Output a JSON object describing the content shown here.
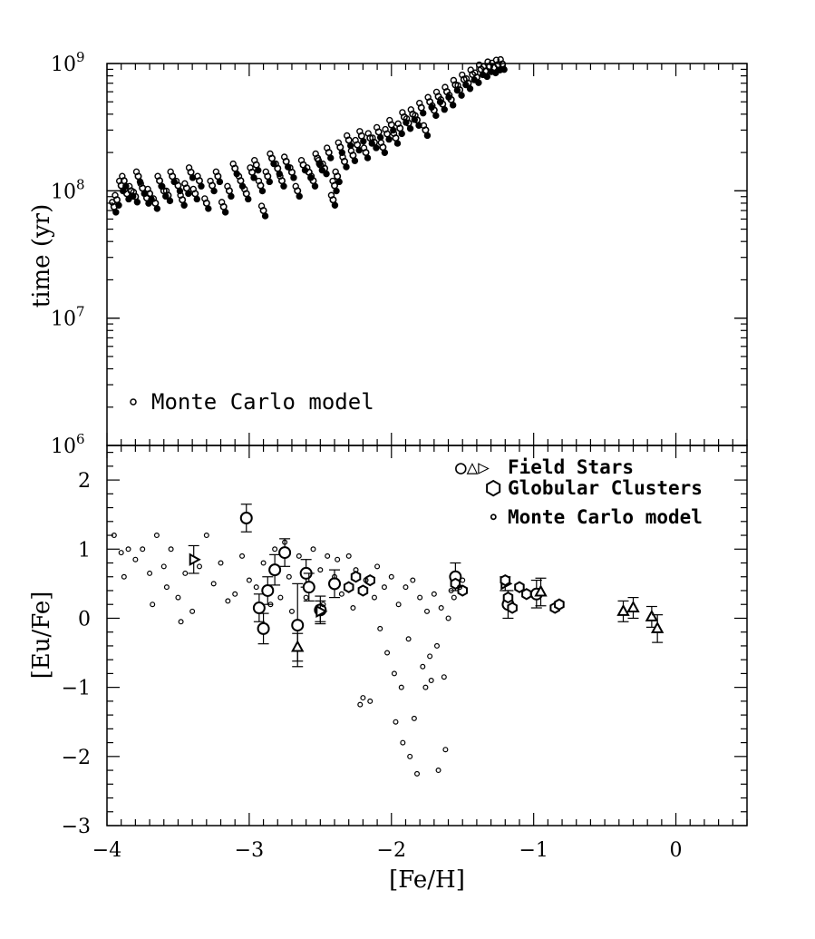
{
  "chart_data": [
    {
      "panel": "top",
      "type": "scatter",
      "xlabel": "",
      "ylabel": "time (yr)",
      "xlim": [
        -4,
        0.5
      ],
      "ylim": [
        1000000,
        1000000000
      ],
      "yscale": "log",
      "yticks": [
        {
          "value": 1000000,
          "base": "10",
          "exp": "6"
        },
        {
          "value": 10000000,
          "base": "10",
          "exp": "7"
        },
        {
          "value": 100000000,
          "base": "10",
          "exp": "8"
        },
        {
          "value": 1000000000,
          "base": "10",
          "exp": "9"
        }
      ],
      "legend": [
        {
          "marker": "circle-small",
          "label": "Monte Carlo model"
        }
      ],
      "legend_position": "bottom-left",
      "series": [
        {
          "name": "Monte Carlo model",
          "marker": "circle-small",
          "points": [
            [
              -3.95,
              75000000
            ],
            [
              -3.93,
              85000000
            ],
            [
              -3.9,
              110000000
            ],
            [
              -3.88,
              120000000
            ],
            [
              -3.86,
              95000000
            ],
            [
              -3.83,
              100000000
            ],
            [
              -3.8,
              90000000
            ],
            [
              -3.78,
              130000000
            ],
            [
              -3.75,
              105000000
            ],
            [
              -3.72,
              88000000
            ],
            [
              -3.7,
              95000000
            ],
            [
              -3.66,
              80000000
            ],
            [
              -3.63,
              120000000
            ],
            [
              -3.6,
              100000000
            ],
            [
              -3.57,
              92000000
            ],
            [
              -3.54,
              130000000
            ],
            [
              -3.5,
              110000000
            ],
            [
              -3.47,
              85000000
            ],
            [
              -3.44,
              105000000
            ],
            [
              -3.41,
              140000000
            ],
            [
              -3.38,
              95000000
            ],
            [
              -3.35,
              120000000
            ],
            [
              -3.3,
              80000000
            ],
            [
              -3.26,
              110000000
            ],
            [
              -3.22,
              130000000
            ],
            [
              -3.18,
              75000000
            ],
            [
              -3.14,
              100000000
            ],
            [
              -3.1,
              150000000
            ],
            [
              -3.06,
              120000000
            ],
            [
              -3.02,
              95000000
            ],
            [
              -2.98,
              140000000
            ],
            [
              -2.95,
              160000000
            ],
            [
              -2.92,
              110000000
            ],
            [
              -2.9,
              70000000
            ],
            [
              -2.87,
              130000000
            ],
            [
              -2.84,
              180000000
            ],
            [
              -2.8,
              150000000
            ],
            [
              -2.77,
              120000000
            ],
            [
              -2.74,
              170000000
            ],
            [
              -2.7,
              140000000
            ],
            [
              -2.66,
              100000000
            ],
            [
              -2.62,
              160000000
            ],
            [
              -2.58,
              140000000
            ],
            [
              -2.55,
              120000000
            ],
            [
              -2.52,
              180000000
            ],
            [
              -2.5,
              160000000
            ],
            [
              -2.47,
              150000000
            ],
            [
              -2.44,
              200000000
            ],
            [
              -2.41,
              85000000
            ],
            [
              -2.4,
              110000000
            ],
            [
              -2.38,
              130000000
            ],
            [
              -2.36,
              220000000
            ],
            [
              -2.33,
              170000000
            ],
            [
              -2.3,
              250000000
            ],
            [
              -2.27,
              190000000
            ],
            [
              -2.24,
              230000000
            ],
            [
              -2.21,
              270000000
            ],
            [
              -2.18,
              200000000
            ],
            [
              -2.15,
              260000000
            ],
            [
              -2.12,
              240000000
            ],
            [
              -2.09,
              290000000
            ],
            [
              -2.06,
              220000000
            ],
            [
              -2.03,
              280000000
            ],
            [
              -2.0,
              330000000
            ],
            [
              -1.97,
              260000000
            ],
            [
              -1.94,
              310000000
            ],
            [
              -1.91,
              380000000
            ],
            [
              -1.88,
              340000000
            ],
            [
              -1.85,
              400000000
            ],
            [
              -1.82,
              360000000
            ],
            [
              -1.79,
              450000000
            ],
            [
              -1.76,
              300000000
            ],
            [
              -1.73,
              500000000
            ],
            [
              -1.7,
              430000000
            ],
            [
              -1.67,
              550000000
            ],
            [
              -1.64,
              480000000
            ],
            [
              -1.61,
              600000000
            ],
            [
              -1.58,
              520000000
            ],
            [
              -1.55,
              680000000
            ],
            [
              -1.52,
              620000000
            ],
            [
              -1.49,
              750000000
            ],
            [
              -1.46,
              700000000
            ],
            [
              -1.43,
              820000000
            ],
            [
              -1.4,
              780000000
            ],
            [
              -1.37,
              900000000
            ],
            [
              -1.34,
              870000000
            ],
            [
              -1.31,
              950000000
            ],
            [
              -1.28,
              930000000
            ],
            [
              -1.25,
              980000000
            ],
            [
              -1.22,
              990000000
            ]
          ]
        }
      ]
    },
    {
      "panel": "bottom",
      "type": "scatter",
      "xlabel": "[Fe/H]",
      "ylabel": "[Eu/Fe]",
      "xlim": [
        -4,
        0.5
      ],
      "ylim": [
        -3,
        2.5
      ],
      "xticks": [
        "−4",
        "−3",
        "−2",
        "−1",
        "0"
      ],
      "xtick_values": [
        -4,
        -3,
        -2,
        -1,
        0
      ],
      "yticks": [
        "−3",
        "−2",
        "−1",
        "0",
        "1",
        "2"
      ],
      "ytick_values": [
        -3,
        -2,
        -1,
        0,
        1,
        2
      ],
      "legend": [
        {
          "markers": "○△▷",
          "label": "Field Stars"
        },
        {
          "markers": "⬡",
          "label": "Globular Clusters"
        },
        {
          "markers": "∘",
          "label": "Monte Carlo model"
        }
      ],
      "legend_position": "top-right",
      "series": [
        {
          "name": "Field Stars",
          "marker": "circle-large",
          "points": [
            [
              -3.02,
              1.45,
              0.2
            ],
            [
              -2.93,
              0.15,
              0.2
            ],
            [
              -2.9,
              -0.15,
              0.22
            ],
            [
              -2.87,
              0.4,
              0.2
            ],
            [
              -2.82,
              0.7,
              0.22
            ],
            [
              -2.75,
              0.95,
              0.2
            ],
            [
              -2.66,
              -0.1,
              0.6
            ],
            [
              -2.6,
              0.65,
              0.2
            ],
            [
              -2.58,
              0.45,
              0.2
            ],
            [
              -2.5,
              0.12,
              0.2
            ],
            [
              -2.4,
              0.5,
              0.2
            ],
            [
              -1.55,
              0.6,
              0.2
            ],
            [
              -1.18,
              0.2,
              0.2
            ],
            [
              -0.98,
              0.35,
              0.2
            ]
          ]
        },
        {
          "name": "Field Stars",
          "marker": "triangle-up",
          "points": [
            [
              -2.66,
              -0.42,
              0.2
            ],
            [
              -0.95,
              0.38,
              0.2
            ],
            [
              -0.37,
              0.1,
              0.15
            ],
            [
              -0.3,
              0.15,
              0.15
            ],
            [
              -0.17,
              0.02,
              0.15
            ],
            [
              -0.13,
              -0.15,
              0.2
            ]
          ]
        },
        {
          "name": "Field Stars",
          "marker": "triangle-right",
          "points": [
            [
              -3.39,
              0.85,
              0.2
            ],
            [
              -2.5,
              0.1,
              0.15
            ],
            [
              -1.2,
              0.5,
              0.1
            ]
          ]
        },
        {
          "name": "Globular Clusters",
          "marker": "hexagon",
          "points": [
            [
              -2.3,
              0.45
            ],
            [
              -2.25,
              0.6
            ],
            [
              -2.2,
              0.4
            ],
            [
              -2.15,
              0.55
            ],
            [
              -1.55,
              0.5
            ],
            [
              -1.5,
              0.4
            ],
            [
              -1.2,
              0.55
            ],
            [
              -1.18,
              0.3
            ],
            [
              -1.15,
              0.15
            ],
            [
              -1.1,
              0.45
            ],
            [
              -1.05,
              0.35
            ],
            [
              -0.85,
              0.15
            ],
            [
              -0.82,
              0.2
            ]
          ]
        },
        {
          "name": "Monte Carlo model",
          "marker": "circle-small",
          "points": [
            [
              -3.95,
              1.2
            ],
            [
              -3.9,
              0.95
            ],
            [
              -3.88,
              0.6
            ],
            [
              -3.85,
              1.0
            ],
            [
              -3.8,
              0.85
            ],
            [
              -3.75,
              1.0
            ],
            [
              -3.7,
              0.65
            ],
            [
              -3.68,
              0.2
            ],
            [
              -3.65,
              1.2
            ],
            [
              -3.6,
              0.75
            ],
            [
              -3.58,
              0.45
            ],
            [
              -3.55,
              1.0
            ],
            [
              -3.5,
              0.3
            ],
            [
              -3.48,
              -0.05
            ],
            [
              -3.45,
              0.65
            ],
            [
              -3.4,
              0.1
            ],
            [
              -3.35,
              0.75
            ],
            [
              -3.3,
              1.2
            ],
            [
              -3.25,
              0.5
            ],
            [
              -3.2,
              0.8
            ],
            [
              -3.15,
              0.25
            ],
            [
              -3.1,
              0.35
            ],
            [
              -3.05,
              0.9
            ],
            [
              -3.0,
              0.55
            ],
            [
              -2.95,
              0.45
            ],
            [
              -2.9,
              0.8
            ],
            [
              -2.85,
              0.2
            ],
            [
              -2.82,
              1.0
            ],
            [
              -2.78,
              0.3
            ],
            [
              -2.75,
              1.1
            ],
            [
              -2.72,
              0.6
            ],
            [
              -2.7,
              0.1
            ],
            [
              -2.65,
              0.9
            ],
            [
              -2.6,
              0.3
            ],
            [
              -2.55,
              1.0
            ],
            [
              -2.5,
              0.7
            ],
            [
              -2.48,
              0.2
            ],
            [
              -2.45,
              0.9
            ],
            [
              -2.4,
              0.6
            ],
            [
              -2.38,
              0.85
            ],
            [
              -2.35,
              0.35
            ],
            [
              -2.3,
              0.9
            ],
            [
              -2.27,
              0.15
            ],
            [
              -2.25,
              0.7
            ],
            [
              -2.22,
              -1.25
            ],
            [
              -2.2,
              -1.15
            ],
            [
              -2.18,
              0.55
            ],
            [
              -2.15,
              -1.2
            ],
            [
              -2.12,
              0.3
            ],
            [
              -2.1,
              0.75
            ],
            [
              -2.08,
              -0.15
            ],
            [
              -2.05,
              0.45
            ],
            [
              -2.03,
              -0.5
            ],
            [
              -2.0,
              0.6
            ],
            [
              -1.98,
              -0.8
            ],
            [
              -1.97,
              -1.5
            ],
            [
              -1.95,
              0.2
            ],
            [
              -1.93,
              -1.0
            ],
            [
              -1.92,
              -1.8
            ],
            [
              -1.9,
              0.45
            ],
            [
              -1.88,
              -0.3
            ],
            [
              -1.87,
              -2.0
            ],
            [
              -1.85,
              0.55
            ],
            [
              -1.84,
              -1.45
            ],
            [
              -1.82,
              -2.25
            ],
            [
              -1.8,
              0.3
            ],
            [
              -1.78,
              -0.7
            ],
            [
              -1.76,
              -1.0
            ],
            [
              -1.75,
              0.1
            ],
            [
              -1.73,
              -0.55
            ],
            [
              -1.72,
              -0.9
            ],
            [
              -1.7,
              0.35
            ],
            [
              -1.68,
              -0.4
            ],
            [
              -1.67,
              -2.2
            ],
            [
              -1.65,
              0.15
            ],
            [
              -1.63,
              -0.85
            ],
            [
              -1.62,
              -1.9
            ],
            [
              -1.6,
              0.0
            ],
            [
              -1.58,
              0.4
            ],
            [
              -1.56,
              0.3
            ],
            [
              -1.52,
              0.45
            ],
            [
              -1.5,
              0.55
            ]
          ]
        }
      ]
    }
  ]
}
